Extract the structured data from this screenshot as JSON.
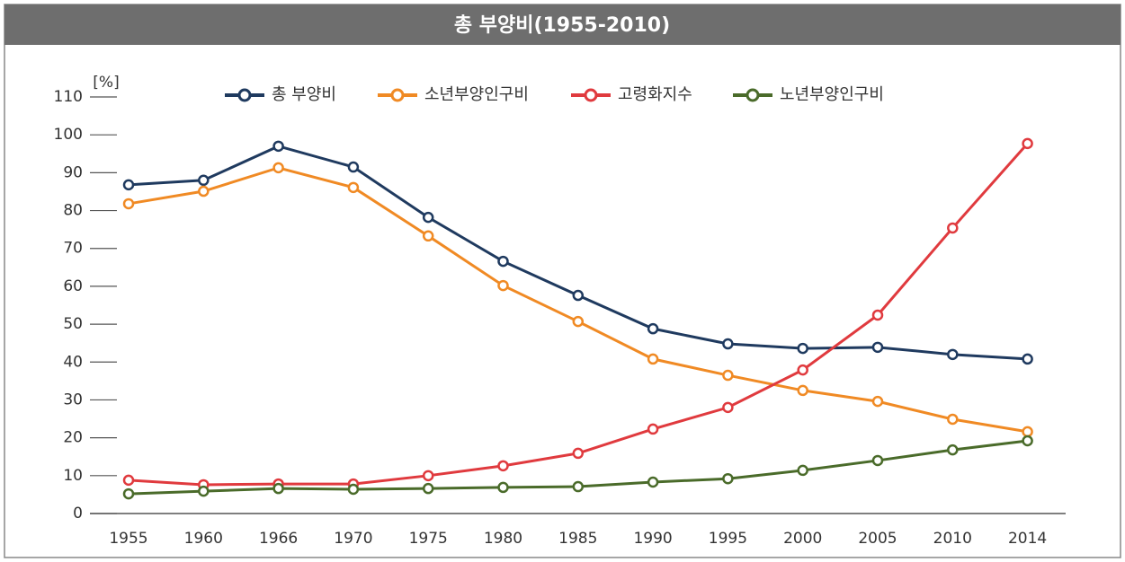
{
  "chart_data": {
    "type": "line",
    "title": "총 부양비(1955-2010)",
    "y_unit": "[%]",
    "categories": [
      "1955",
      "1960",
      "1966",
      "1970",
      "1975",
      "1980",
      "1985",
      "1990",
      "1995",
      "2000",
      "2005",
      "2010",
      "2014"
    ],
    "series": [
      {
        "name": "총 부양비",
        "color": "#1f3a5f",
        "values": [
          86.8,
          88.0,
          97.0,
          91.5,
          78.2,
          66.6,
          57.6,
          48.8,
          44.8,
          43.6,
          43.9,
          42.0,
          40.8
        ]
      },
      {
        "name": "소년부양인구비",
        "color": "#f08a24",
        "values": [
          81.8,
          85.1,
          91.3,
          86.1,
          73.3,
          60.2,
          50.7,
          40.8,
          36.5,
          32.5,
          29.6,
          24.9,
          21.6
        ]
      },
      {
        "name": "고령화지수",
        "color": "#e03a3e",
        "values": [
          8.8,
          7.6,
          7.8,
          7.8,
          10.0,
          12.6,
          15.9,
          22.3,
          28.0,
          37.9,
          52.4,
          75.4,
          97.7
        ]
      },
      {
        "name": "노년부양인구비",
        "color": "#4a6b2a",
        "values": [
          5.2,
          5.9,
          6.6,
          6.4,
          6.6,
          6.9,
          7.1,
          8.3,
          9.2,
          11.4,
          14.0,
          16.8,
          19.2
        ]
      }
    ],
    "ylim": [
      0,
      110
    ],
    "yticks": [
      0,
      10,
      20,
      30,
      40,
      50,
      60,
      70,
      80,
      90,
      100,
      110
    ]
  }
}
